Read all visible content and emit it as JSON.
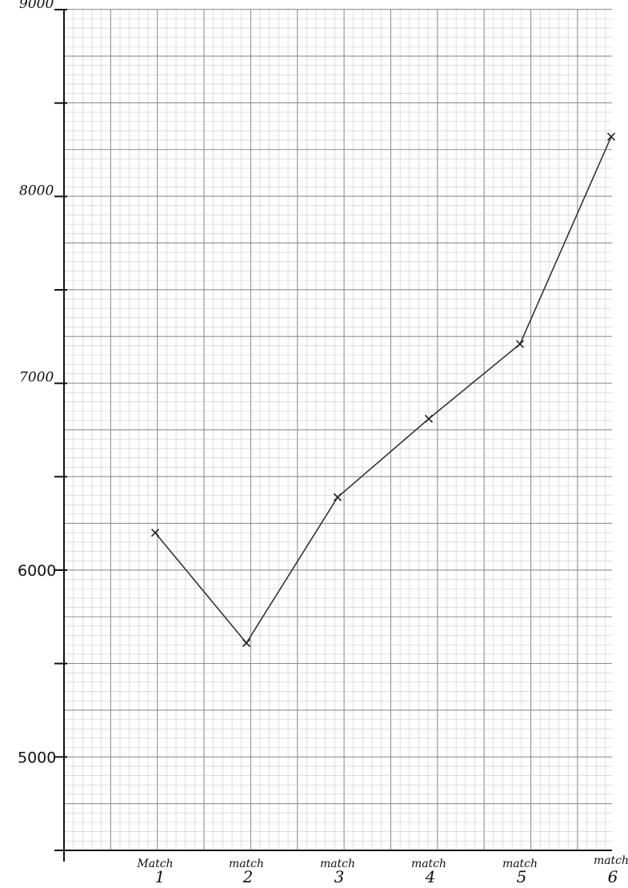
{
  "chart_data": {
    "type": "line",
    "title": "",
    "xlabel": "",
    "ylabel": "",
    "categories": [
      {
        "word": "Match",
        "num": "1"
      },
      {
        "word": "match",
        "num": "2"
      },
      {
        "word": "match",
        "num": "3"
      },
      {
        "word": "match",
        "num": "4"
      },
      {
        "word": "match",
        "num": "5"
      },
      {
        "word": "match",
        "num": "6"
      }
    ],
    "values": [
      6200,
      5610,
      6390,
      6810,
      7210,
      8320
    ],
    "ylim": [
      4500,
      9000
    ],
    "yticks": [
      {
        "value": 5000,
        "label": "5000"
      },
      {
        "value": 6000,
        "label": "6000"
      },
      {
        "value": 7000,
        "label": "7000"
      },
      {
        "value": 8000,
        "label": "8000"
      },
      {
        "value": 9000,
        "label": "9000"
      }
    ],
    "yminor_ticks": [
      5500,
      6500,
      7500,
      8500
    ],
    "grid": true,
    "marker": "x",
    "colors": {
      "grid_minor": "#c9c9c9",
      "grid_major": "#8f8f8f",
      "line": "#333333"
    }
  }
}
